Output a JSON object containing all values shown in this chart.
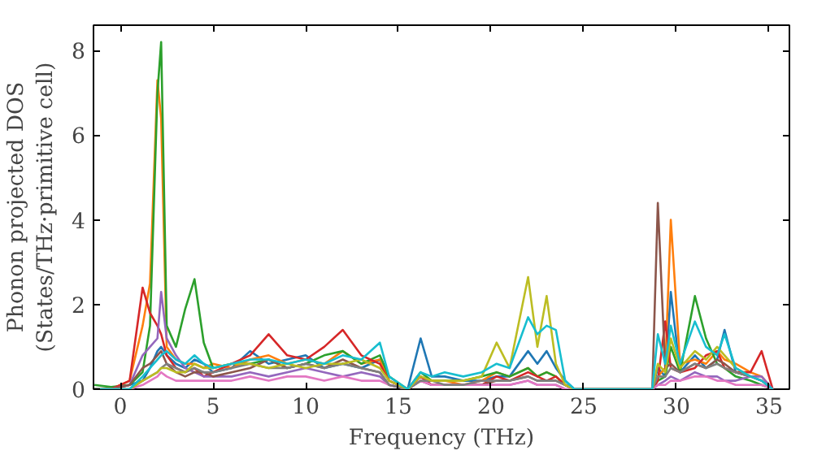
{
  "chart_data": {
    "type": "line",
    "xlabel": "Frequency (THz)",
    "ylabel": "Phonon projected DOS\n(States/THz·primitive cell)",
    "x": [
      -1.4,
      -0.5,
      0.5,
      1.2,
      1.6,
      2.0,
      2.2,
      2.5,
      3,
      3.5,
      4,
      4.5,
      5,
      6,
      7,
      8,
      9,
      10,
      11,
      12,
      13,
      14,
      14.5,
      15.5,
      16.2,
      16.8,
      17.5,
      18.5,
      19.5,
      20.3,
      21,
      22,
      22.5,
      23,
      23.5,
      24,
      24.5,
      28.7,
      29,
      29.4,
      29.7,
      30.2,
      31,
      31.6,
      32.2,
      32.6,
      33.2,
      34,
      34.6,
      35.2
    ],
    "xlim": [
      -1.45,
      36.1
    ],
    "ylim": [
      0,
      8.6
    ],
    "xticks": [
      0,
      5,
      10,
      15,
      20,
      25,
      30,
      35
    ],
    "yticks": [
      0,
      2,
      4,
      6,
      8
    ],
    "grid": false,
    "line_style": "solid",
    "marker": "none",
    "series": [
      {
        "color": "#1f77b4",
        "values": [
          0,
          0,
          0.1,
          0.2,
          0.5,
          0.9,
          1.0,
          0.8,
          0.6,
          0.5,
          0.7,
          0.6,
          0.4,
          0.5,
          0.9,
          0.6,
          0.7,
          0.8,
          0.5,
          0.6,
          0.5,
          0.7,
          0.2,
          0,
          1.2,
          0.3,
          0.3,
          0.2,
          0.2,
          0.3,
          0.3,
          0.9,
          0.6,
          0.9,
          0.5,
          0.2,
          0,
          0,
          0.5,
          0.3,
          2.3,
          0.4,
          0.8,
          0.5,
          0.7,
          1.4,
          0.4,
          0.3,
          null,
          null
        ]
      },
      {
        "color": "#ff7f0e",
        "values": [
          0,
          0,
          0.2,
          1.5,
          2.5,
          7.3,
          6.4,
          1.0,
          0.7,
          0.6,
          0.6,
          0.5,
          0.6,
          0.5,
          0.7,
          0.8,
          0.6,
          0.7,
          0.6,
          0.9,
          0.6,
          0.7,
          0.2,
          0,
          0.3,
          0.2,
          0.2,
          0.1,
          0.2,
          0.4,
          0.3,
          0.5,
          0.3,
          0.4,
          0.3,
          0.1,
          0,
          0,
          0.3,
          0.5,
          4.0,
          0.6,
          0.7,
          0.6,
          0.9,
          0.7,
          0.6,
          0.4,
          0.3,
          0
        ]
      },
      {
        "color": "#2ca02c",
        "values": [
          0.1,
          0.05,
          0.1,
          0.4,
          1.5,
          7.0,
          8.2,
          1.5,
          1.0,
          1.9,
          2.6,
          1.1,
          0.5,
          0.6,
          0.6,
          0.7,
          0.5,
          0.6,
          0.8,
          0.9,
          0.6,
          0.8,
          0.3,
          0,
          0.4,
          0.2,
          0.2,
          0.2,
          0.3,
          0.4,
          0.3,
          0.5,
          0.3,
          0.4,
          0.3,
          0.1,
          0,
          0,
          0.2,
          0.3,
          1.0,
          0.4,
          2.2,
          1.2,
          0.6,
          0.5,
          0.3,
          0.2,
          0.1,
          0
        ]
      },
      {
        "color": "#d62728",
        "values": [
          0,
          0,
          0.2,
          2.4,
          1.8,
          1.5,
          1.3,
          0.8,
          0.5,
          0.4,
          0.5,
          0.3,
          0.4,
          0.6,
          0.8,
          1.3,
          0.8,
          0.7,
          1.0,
          1.4,
          0.8,
          0.6,
          0.2,
          0,
          0.3,
          0.1,
          0.1,
          0.1,
          0.1,
          0.3,
          0.2,
          0.4,
          0.3,
          0.2,
          0.3,
          0.1,
          0,
          0,
          0.2,
          1.6,
          0.5,
          0.4,
          0.5,
          0.8,
          0.9,
          0.5,
          0.4,
          0.4,
          0.9,
          0
        ]
      },
      {
        "color": "#9467bd",
        "values": [
          0,
          0,
          0.1,
          0.8,
          1.0,
          1.2,
          2.3,
          1.2,
          0.8,
          0.5,
          0.4,
          0.3,
          0.3,
          0.3,
          0.4,
          0.3,
          0.4,
          0.5,
          0.4,
          0.3,
          0.4,
          0.3,
          0.1,
          0,
          0.2,
          0.1,
          0.1,
          0.1,
          0.1,
          0.1,
          0.1,
          0.2,
          0.1,
          0.1,
          0.1,
          0,
          0,
          0,
          0.1,
          0.2,
          0.3,
          0.2,
          0.4,
          0.3,
          0.3,
          0.2,
          0.2,
          0.3,
          0.3,
          0
        ]
      },
      {
        "color": "#8c564b",
        "values": [
          0,
          0,
          0.1,
          0.5,
          0.6,
          0.8,
          0.9,
          0.6,
          0.4,
          0.3,
          0.4,
          0.4,
          0.3,
          0.4,
          0.5,
          0.7,
          0.5,
          0.6,
          0.5,
          0.7,
          0.5,
          0.4,
          0.1,
          0,
          0.2,
          0.1,
          0.1,
          0.1,
          0.1,
          0.2,
          0.2,
          0.3,
          0.2,
          0.2,
          0.2,
          0.1,
          0,
          0,
          4.4,
          0.5,
          0.6,
          0.4,
          0.6,
          0.5,
          0.7,
          0.6,
          0.4,
          0.3,
          0.2,
          0
        ]
      },
      {
        "color": "#e377c2",
        "values": [
          0,
          0,
          0,
          0.1,
          0.2,
          0.3,
          0.4,
          0.3,
          0.2,
          0.2,
          0.2,
          0.2,
          0.2,
          0.2,
          0.3,
          0.2,
          0.3,
          0.3,
          0.2,
          0.3,
          0.2,
          0.2,
          0.1,
          0,
          0.2,
          0.1,
          0.1,
          0.1,
          0.1,
          0.1,
          0.1,
          0.2,
          0.1,
          0.1,
          0.1,
          0,
          0,
          0,
          0.1,
          0.1,
          0.2,
          0.2,
          0.3,
          0.3,
          0.2,
          0.2,
          0.1,
          0.1,
          0.1,
          0
        ]
      },
      {
        "color": "#7f7f7f",
        "values": [
          0,
          0,
          0,
          0.2,
          0.3,
          0.4,
          0.5,
          0.6,
          0.5,
          0.4,
          0.5,
          0.4,
          0.4,
          0.5,
          0.6,
          0.5,
          0.5,
          0.6,
          0.5,
          0.6,
          0.5,
          0.4,
          0.1,
          0,
          0.2,
          0.2,
          0.1,
          0.1,
          0.2,
          0.2,
          0.2,
          0.3,
          0.2,
          0.2,
          0.2,
          0.1,
          0,
          0,
          0.3,
          0.3,
          0.5,
          0.4,
          0.6,
          0.5,
          0.6,
          0.5,
          0.4,
          0.3,
          0.2,
          0
        ]
      },
      {
        "color": "#bcbd22",
        "values": [
          0,
          0,
          0,
          0.2,
          0.3,
          0.4,
          0.5,
          0.5,
          0.4,
          0.4,
          0.6,
          0.5,
          0.5,
          0.6,
          0.6,
          0.5,
          0.6,
          0.5,
          0.6,
          0.6,
          0.7,
          0.5,
          0.2,
          0,
          0.3,
          0.2,
          0.2,
          0.2,
          0.3,
          1.1,
          0.5,
          2.65,
          1.0,
          2.2,
          0.6,
          0.1,
          0,
          0,
          0.6,
          0.4,
          1.2,
          0.5,
          0.9,
          0.7,
          1.0,
          0.8,
          0.5,
          0.3,
          null,
          null
        ]
      },
      {
        "color": "#17becf",
        "values": [
          0,
          0,
          0,
          0.3,
          0.5,
          0.7,
          0.8,
          0.9,
          0.7,
          0.6,
          0.8,
          0.6,
          0.5,
          0.6,
          0.7,
          0.7,
          0.6,
          0.7,
          0.6,
          0.8,
          0.7,
          1.1,
          0.3,
          0,
          0.4,
          0.3,
          0.4,
          0.3,
          0.4,
          0.6,
          0.5,
          1.7,
          1.3,
          1.5,
          1.4,
          0.2,
          0,
          0,
          1.3,
          0.6,
          1.5,
          0.6,
          1.6,
          1.0,
          0.8,
          1.3,
          0.5,
          0.3,
          0.2,
          0
        ]
      }
    ]
  }
}
